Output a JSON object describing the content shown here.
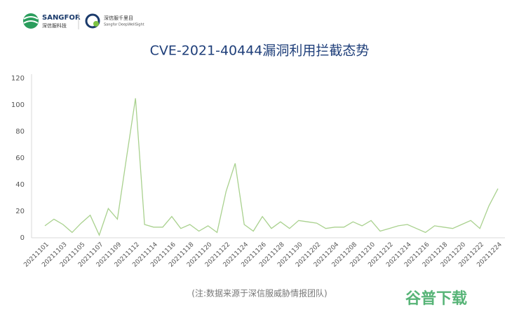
{
  "header": {
    "brand": "SANGFOR",
    "brand_sub": "深信服科技",
    "product": "深信服千里目",
    "product_sub": "Sangfor DeepWellSight"
  },
  "chart_data": {
    "type": "line",
    "title": "CVE-2021-40444漏洞利用拦截态势",
    "categories": [
      "20211101",
      null,
      "20211103",
      null,
      "20211105",
      null,
      "20211107",
      null,
      "20211109",
      null,
      "20211112",
      null,
      "20211114",
      null,
      "20211116",
      null,
      "20211118",
      null,
      "20211120",
      null,
      "20211122",
      null,
      "20211124",
      null,
      "20211126",
      null,
      "20211128",
      null,
      "20211130",
      null,
      "20211202",
      null,
      "20211204",
      null,
      "20211208",
      null,
      "20211210",
      null,
      "20211212",
      null,
      "20211214",
      null,
      "20211216",
      null,
      "20211218",
      null,
      "20211220",
      null,
      "20211222",
      null,
      "20211224"
    ],
    "values": [
      9,
      14,
      10,
      4,
      11,
      17,
      2,
      22,
      14,
      60,
      105,
      10,
      8,
      8,
      16,
      7,
      10,
      5,
      9,
      4,
      35,
      56,
      10,
      5,
      16,
      7,
      12,
      7,
      13,
      12,
      11,
      7,
      8,
      8,
      12,
      9,
      13,
      5,
      7,
      9,
      10,
      7,
      4,
      9,
      8,
      7,
      10,
      13,
      7,
      24,
      37
    ],
    "color": "#a9d18e",
    "ylim": [
      0,
      120
    ],
    "yticks": [
      0,
      20,
      40,
      60,
      80,
      100,
      120
    ],
    "grid": false,
    "note": "(注:数据来源于深信服威胁情报团队)"
  },
  "watermark": "谷普下载"
}
